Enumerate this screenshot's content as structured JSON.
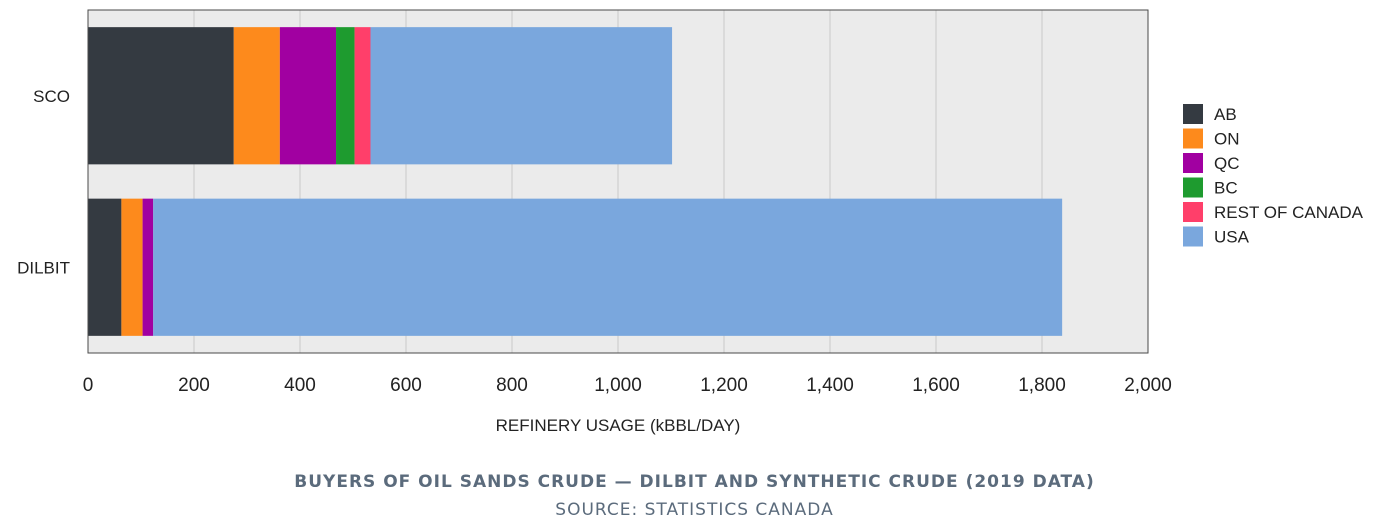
{
  "chart_data": {
    "type": "bar",
    "orientation": "horizontal",
    "stacked": true,
    "categories": [
      "SCO",
      "DILBIT"
    ],
    "series": [
      {
        "name": "AB",
        "color": "#343a41",
        "values": [
          275,
          63
        ]
      },
      {
        "name": "ON",
        "color": "#fd8a1c",
        "values": [
          87,
          40
        ]
      },
      {
        "name": "QC",
        "color": "#a100a1",
        "values": [
          106,
          20
        ]
      },
      {
        "name": "BC",
        "color": "#1e9b2f",
        "values": [
          35,
          0
        ]
      },
      {
        "name": "REST OF CANADA",
        "color": "#ff3f6a",
        "values": [
          30,
          0
        ]
      },
      {
        "name": "USA",
        "color": "#7aa7dd",
        "values": [
          569,
          1715
        ]
      }
    ],
    "xlabel": "REFINERY USAGE (kBBL/DAY)",
    "xlim": [
      0,
      2000
    ],
    "xticks": [
      0,
      200,
      400,
      600,
      800,
      1000,
      1200,
      1400,
      1600,
      1800,
      2000
    ],
    "xtick_labels": [
      "0",
      "200",
      "400",
      "600",
      "800",
      "1,000",
      "1,200",
      "1,400",
      "1,600",
      "1,800",
      "2,000"
    ],
    "grid": "vertical",
    "legend_position": "right",
    "plot_background": "#ebebeb",
    "gridline_color": "#c9c9c9"
  },
  "caption": {
    "title": "BUYERS OF OIL SANDS CRUDE — DILBIT AND SYNTHETIC CRUDE (2019 DATA)",
    "source": "SOURCE: STATISTICS CANADA"
  }
}
